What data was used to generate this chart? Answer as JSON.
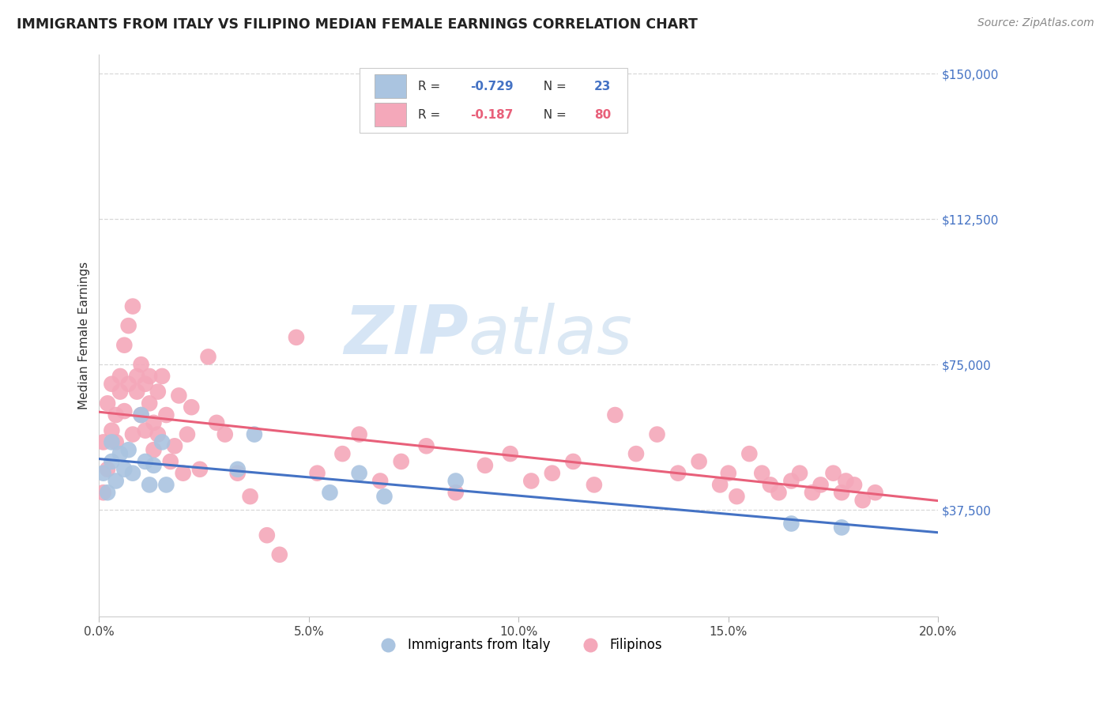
{
  "title": "IMMIGRANTS FROM ITALY VS FILIPINO MEDIAN FEMALE EARNINGS CORRELATION CHART",
  "source": "Source: ZipAtlas.com",
  "ylabel": "Median Female Earnings",
  "xlim": [
    0.0,
    0.2
  ],
  "ylim": [
    10000,
    155000
  ],
  "yticks": [
    37500,
    75000,
    112500,
    150000
  ],
  "ytick_labels": [
    "$37,500",
    "$75,000",
    "$112,500",
    "$150,000"
  ],
  "xticks": [
    0.0,
    0.05,
    0.1,
    0.15,
    0.2
  ],
  "xtick_labels": [
    "0.0%",
    "5.0%",
    "10.0%",
    "15.0%",
    "20.0%"
  ],
  "italy_color": "#aac4e0",
  "italy_line_color": "#4472c4",
  "filipino_color": "#f4a8ba",
  "filipino_line_color": "#e8607a",
  "italy_R": -0.729,
  "italy_N": 23,
  "filipino_R": -0.187,
  "filipino_N": 80,
  "legend_italy": "Immigrants from Italy",
  "legend_filipino": "Filipinos",
  "watermark_zip": "ZIP",
  "watermark_atlas": "atlas",
  "background_color": "#ffffff",
  "grid_color": "#d8d8d8",
  "italy_scatter_x": [
    0.001,
    0.002,
    0.003,
    0.003,
    0.004,
    0.005,
    0.006,
    0.007,
    0.008,
    0.01,
    0.011,
    0.012,
    0.013,
    0.015,
    0.016,
    0.033,
    0.037,
    0.055,
    0.062,
    0.068,
    0.085,
    0.165,
    0.177
  ],
  "italy_scatter_y": [
    47000,
    42000,
    50000,
    55000,
    45000,
    52000,
    48000,
    53000,
    47000,
    62000,
    50000,
    44000,
    49000,
    55000,
    44000,
    48000,
    57000,
    42000,
    47000,
    41000,
    45000,
    34000,
    33000
  ],
  "filipino_scatter_x": [
    0.001,
    0.001,
    0.002,
    0.002,
    0.003,
    0.003,
    0.004,
    0.004,
    0.005,
    0.005,
    0.006,
    0.006,
    0.007,
    0.007,
    0.008,
    0.008,
    0.009,
    0.009,
    0.01,
    0.01,
    0.011,
    0.011,
    0.012,
    0.012,
    0.013,
    0.013,
    0.014,
    0.014,
    0.015,
    0.016,
    0.017,
    0.018,
    0.019,
    0.02,
    0.021,
    0.022,
    0.024,
    0.026,
    0.028,
    0.03,
    0.033,
    0.036,
    0.04,
    0.043,
    0.047,
    0.052,
    0.058,
    0.062,
    0.067,
    0.072,
    0.078,
    0.085,
    0.092,
    0.098,
    0.103,
    0.108,
    0.113,
    0.118,
    0.123,
    0.128,
    0.133,
    0.138,
    0.143,
    0.148,
    0.15,
    0.152,
    0.155,
    0.158,
    0.16,
    0.162,
    0.165,
    0.167,
    0.17,
    0.172,
    0.175,
    0.177,
    0.178,
    0.18,
    0.182,
    0.185
  ],
  "filipino_scatter_y": [
    55000,
    42000,
    65000,
    48000,
    70000,
    58000,
    62000,
    55000,
    72000,
    68000,
    80000,
    63000,
    85000,
    70000,
    90000,
    57000,
    68000,
    72000,
    62000,
    75000,
    58000,
    70000,
    65000,
    72000,
    60000,
    53000,
    68000,
    57000,
    72000,
    62000,
    50000,
    54000,
    67000,
    47000,
    57000,
    64000,
    48000,
    77000,
    60000,
    57000,
    47000,
    41000,
    31000,
    26000,
    82000,
    47000,
    52000,
    57000,
    45000,
    50000,
    54000,
    42000,
    49000,
    52000,
    45000,
    47000,
    50000,
    44000,
    62000,
    52000,
    57000,
    47000,
    50000,
    44000,
    47000,
    41000,
    52000,
    47000,
    44000,
    42000,
    45000,
    47000,
    42000,
    44000,
    47000,
    42000,
    45000,
    44000,
    40000,
    42000
  ]
}
